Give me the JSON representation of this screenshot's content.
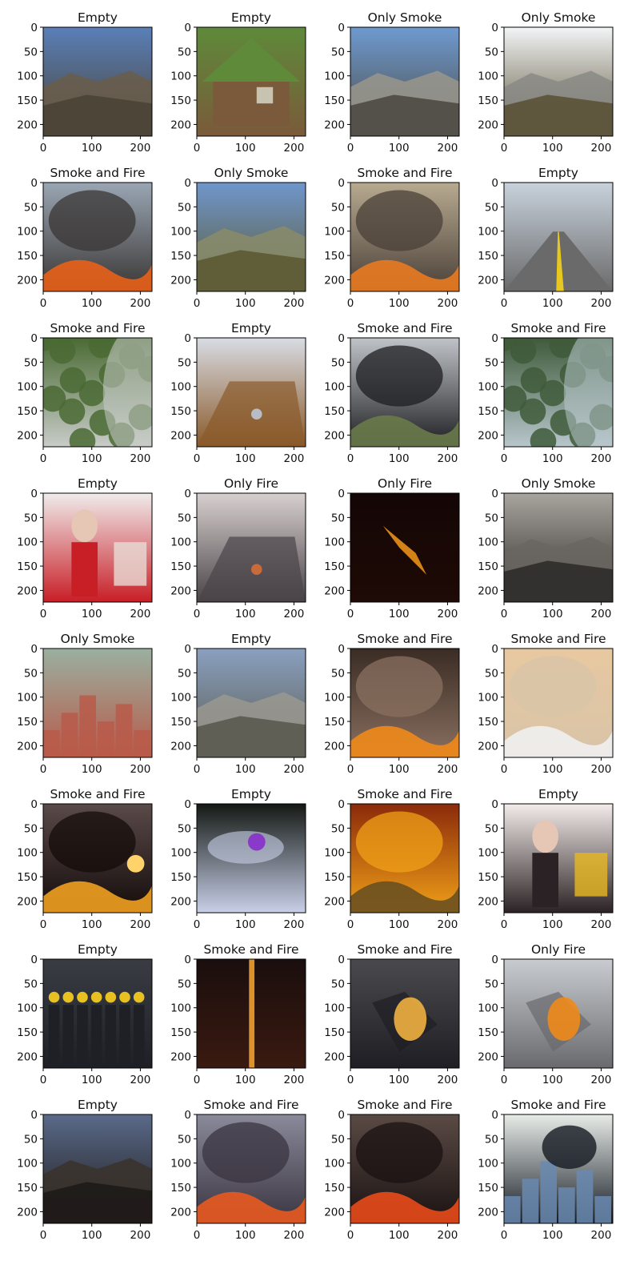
{
  "chart_data": {
    "type": "image-grid",
    "rows": 8,
    "cols": 4,
    "image_size": [
      224,
      224
    ],
    "xticks": [
      0,
      100,
      200
    ],
    "yticks": [
      0,
      50,
      100,
      150,
      200
    ],
    "panels": [
      {
        "title": "Empty",
        "image": {
          "kind": "mountains",
          "c1": "#5a7fb8",
          "c2": "#4a4336",
          "c3": "#6a5d4a"
        }
      },
      {
        "title": "Empty",
        "image": {
          "kind": "house",
          "c1": "#5e8a3a",
          "c2": "#7a5a3a",
          "c3": "#c8c2b0"
        }
      },
      {
        "title": "Only Smoke",
        "image": {
          "kind": "mountains",
          "c1": "#6e9ad0",
          "c2": "#4d4a44",
          "c3": "#9a968c"
        }
      },
      {
        "title": "Only Smoke",
        "image": {
          "kind": "mountains",
          "c1": "#f2f4f6",
          "c2": "#5a5236",
          "c3": "#8a8a86"
        }
      },
      {
        "title": "Smoke and Fire",
        "image": {
          "kind": "fire-smoke",
          "c1": "#9aa6b4",
          "c2": "#3a3634",
          "c3": "#e8601a"
        }
      },
      {
        "title": "Only Smoke",
        "image": {
          "kind": "mountains",
          "c1": "#6f96cc",
          "c2": "#5c5a34",
          "c3": "#8a8c6a"
        }
      },
      {
        "title": "Smoke and Fire",
        "image": {
          "kind": "fire-smoke",
          "c1": "#b8aa90",
          "c2": "#4a4038",
          "c3": "#e87a20"
        }
      },
      {
        "title": "Empty",
        "image": {
          "kind": "road",
          "c1": "#c8d2dc",
          "c2": "#6a6a6a",
          "c3": "#e8c820"
        }
      },
      {
        "title": "Smoke and Fire",
        "image": {
          "kind": "forest",
          "c1": "#4a6a34",
          "c2": "#c8ccc8",
          "c3": "#8a7a5a"
        }
      },
      {
        "title": "Empty",
        "image": {
          "kind": "room",
          "c1": "#d8dce4",
          "c2": "#8a5a2a",
          "c3": "#b8bcc4"
        }
      },
      {
        "title": "Smoke and Fire",
        "image": {
          "kind": "fire-smoke",
          "c1": "#c0c4c8",
          "c2": "#1e1e22",
          "c3": "#6a7a4a"
        }
      },
      {
        "title": "Smoke and Fire",
        "image": {
          "kind": "forest",
          "c1": "#3e5a3a",
          "c2": "#b8c6cc",
          "c3": "#7a8a7a"
        }
      },
      {
        "title": "Empty",
        "image": {
          "kind": "person",
          "c1": "#f0ecec",
          "c2": "#c81e26",
          "c3": "#e8dcd6"
        }
      },
      {
        "title": "Only Fire",
        "image": {
          "kind": "corridor",
          "c1": "#d8d0d0",
          "c2": "#4a4448",
          "c3": "#c86a3a"
        }
      },
      {
        "title": "Only Fire",
        "image": {
          "kind": "dark-fire",
          "c1": "#140606",
          "c2": "#1e0a06",
          "c3": "#e8901a"
        }
      },
      {
        "title": "Only Smoke",
        "image": {
          "kind": "mountains",
          "c1": "#a8a49e",
          "c2": "#2e2c2a",
          "c3": "#6a6662"
        }
      },
      {
        "title": "Only Smoke",
        "image": {
          "kind": "city",
          "c1": "#9ab0a0",
          "c2": "#b85a4a",
          "c3": "#e8e8e8"
        }
      },
      {
        "title": "Empty",
        "image": {
          "kind": "mountains",
          "c1": "#8aa0c0",
          "c2": "#5a5a50",
          "c3": "#9a9890"
        }
      },
      {
        "title": "Smoke and Fire",
        "image": {
          "kind": "fire-smoke",
          "c1": "#3a2c24",
          "c2": "#8a7060",
          "c3": "#f08a1a"
        }
      },
      {
        "title": "Smoke and Fire",
        "image": {
          "kind": "fire-smoke",
          "c1": "#e8c8a0",
          "c2": "#d8c4a8",
          "c3": "#f0f0f0"
        }
      },
      {
        "title": "Smoke and Fire",
        "image": {
          "kind": "sunset-fire",
          "c1": "#5a4a4a",
          "c2": "#140c0a",
          "c3": "#f0a020"
        }
      },
      {
        "title": "Empty",
        "image": {
          "kind": "headlight",
          "c1": "#141814",
          "c2": "#c8d0e8",
          "c3": "#8a3ac8"
        }
      },
      {
        "title": "Smoke and Fire",
        "image": {
          "kind": "fire-smoke",
          "c1": "#8a2a0a",
          "c2": "#f0a018",
          "c3": "#6a5020"
        }
      },
      {
        "title": "Empty",
        "image": {
          "kind": "portrait",
          "c1": "#f4ecea",
          "c2": "#2a2224",
          "c3": "#e8b820"
        }
      },
      {
        "title": "Empty",
        "image": {
          "kind": "crowd",
          "c1": "#3a3c44",
          "c2": "#1e2026",
          "c3": "#e8c020"
        }
      },
      {
        "title": "Smoke and Fire",
        "image": {
          "kind": "fire-line",
          "c1": "#1a0e0e",
          "c2": "#3a1a10",
          "c3": "#f0a030"
        }
      },
      {
        "title": "Smoke and Fire",
        "image": {
          "kind": "aerial-fire",
          "c1": "#4a4a4e",
          "c2": "#1e1e24",
          "c3": "#f0b040"
        }
      },
      {
        "title": "Only Fire",
        "image": {
          "kind": "debris-fire",
          "c1": "#c8ccd0",
          "c2": "#6a6a6e",
          "c3": "#f08a1a"
        }
      },
      {
        "title": "Empty",
        "image": {
          "kind": "dusk",
          "c1": "#5a6a8a",
          "c2": "#1e1a18",
          "c3": "#3a322c"
        }
      },
      {
        "title": "Smoke and Fire",
        "image": {
          "kind": "fire-smoke",
          "c1": "#8a8a9a",
          "c2": "#3a3440",
          "c3": "#e85a20"
        }
      },
      {
        "title": "Smoke and Fire",
        "image": {
          "kind": "night-fire",
          "c1": "#5a4a44",
          "c2": "#1a1212",
          "c3": "#e84a1a"
        }
      },
      {
        "title": "Smoke and Fire",
        "image": {
          "kind": "city-smoke",
          "c1": "#e8ece8",
          "c2": "#141a22",
          "c3": "#6a8ab0"
        }
      }
    ]
  }
}
